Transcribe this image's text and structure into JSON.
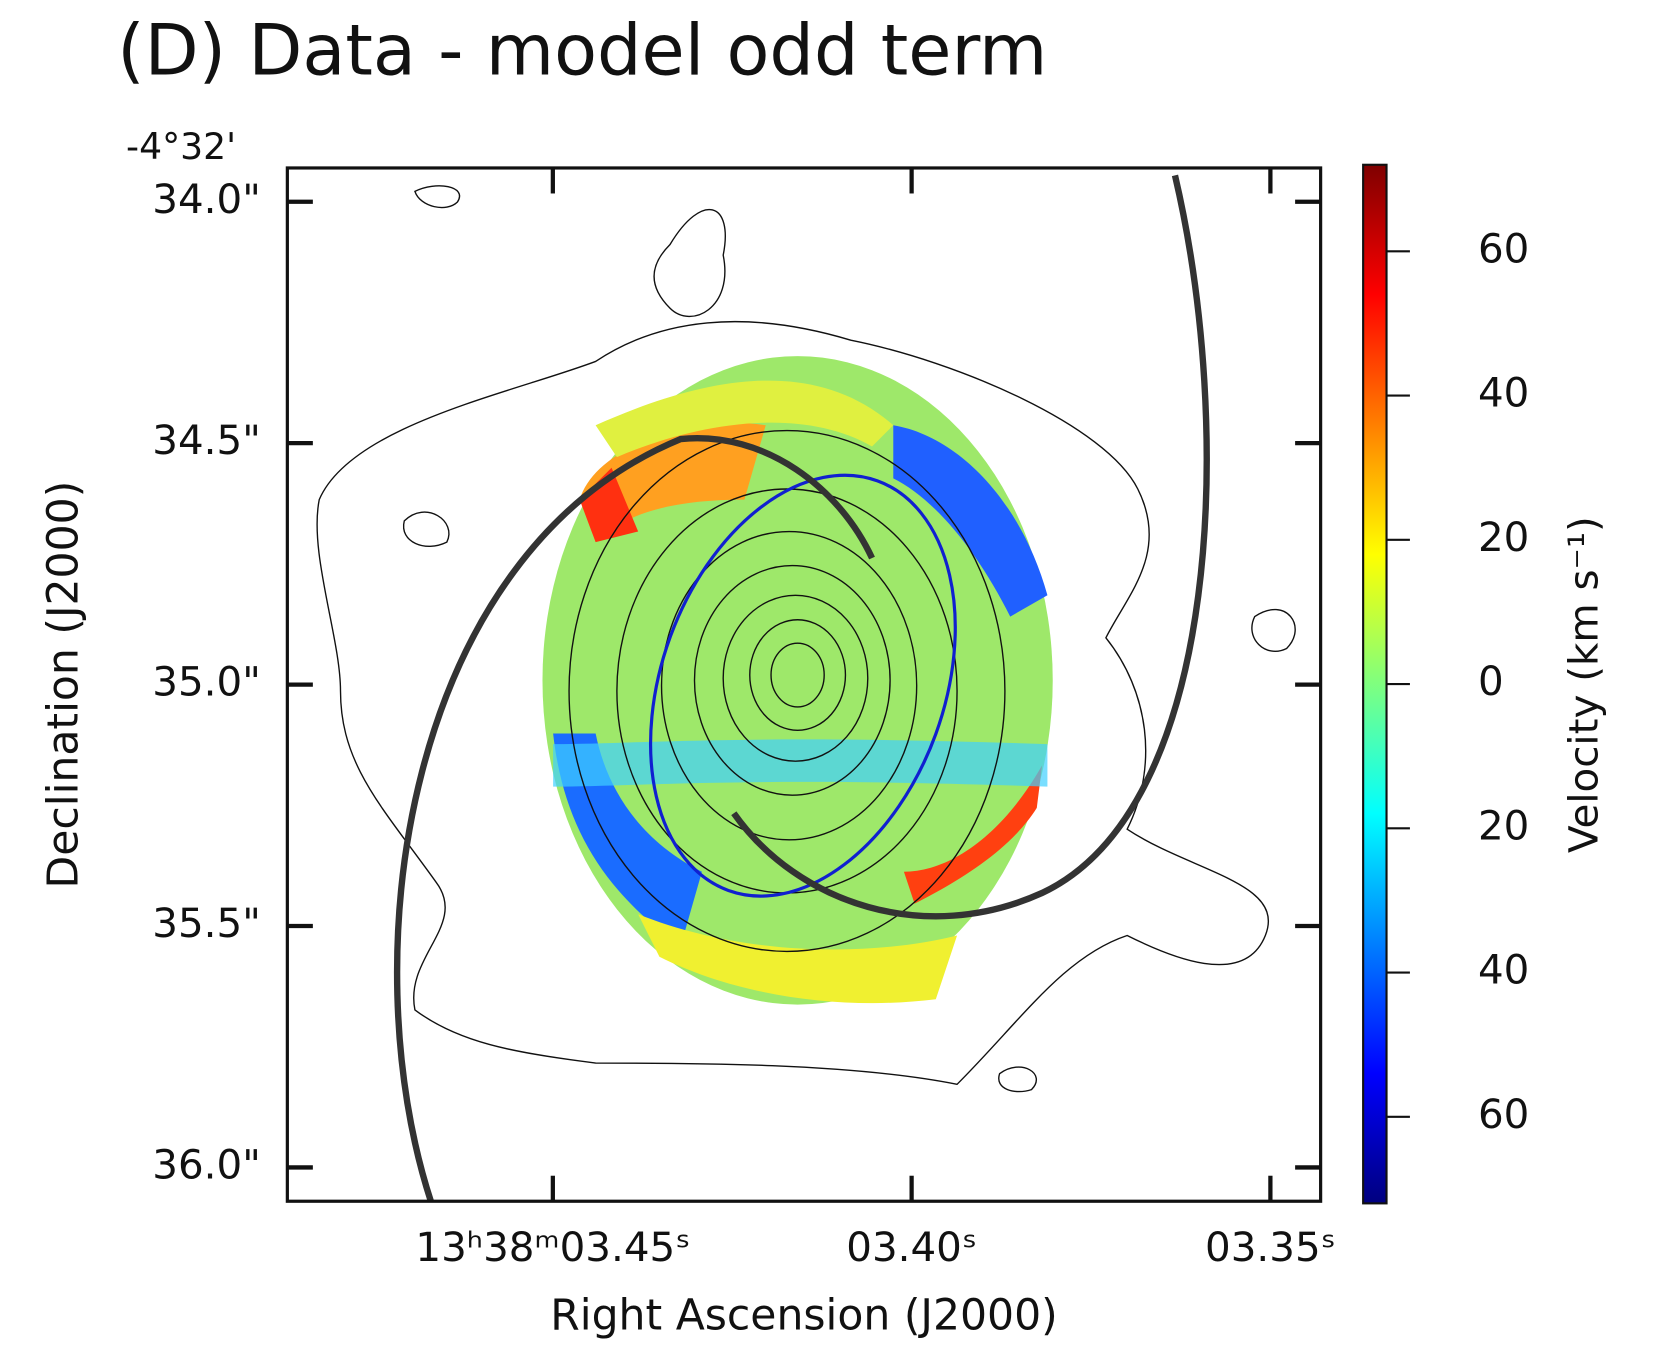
{
  "chart_data": {
    "type": "image-map",
    "title": "(D)  Data - model odd term",
    "x_label": "Right Ascension (J2000)",
    "y_label": "Declination (J2000)",
    "y_offset_label": "-4°32'",
    "xlim": [
      3.487,
      3.343
    ],
    "ylim": [
      36.07,
      33.93
    ],
    "xticks": [
      {
        "value": 3.45,
        "label": "13ʰ38ᵐ03.45ˢ"
      },
      {
        "value": 3.4,
        "label": "03.40ˢ"
      },
      {
        "value": 3.35,
        "label": "03.35ˢ"
      }
    ],
    "yticks": [
      {
        "value": 34.0,
        "label": "34.0\""
      },
      {
        "value": 34.5,
        "label": "34.5\""
      },
      {
        "value": 35.0,
        "label": "35.0\""
      },
      {
        "value": 35.5,
        "label": "35.5\""
      },
      {
        "value": 36.0,
        "label": "36.0\""
      }
    ],
    "colorbar": {
      "label": "Velocity (km s⁻¹)",
      "colormap": [
        "#00007f",
        "#0000ff",
        "#007fff",
        "#00ffff",
        "#7fff7f",
        "#ffff00",
        "#ff7f00",
        "#ff0000",
        "#7f0000"
      ],
      "clim": [
        -72,
        72
      ],
      "ticks": [
        60,
        40,
        20,
        0,
        {
          "value": -20,
          "label": "20"
        },
        {
          "value": -40,
          "label": "40"
        },
        {
          "value": -60,
          "label": "60"
        }
      ]
    }
  }
}
